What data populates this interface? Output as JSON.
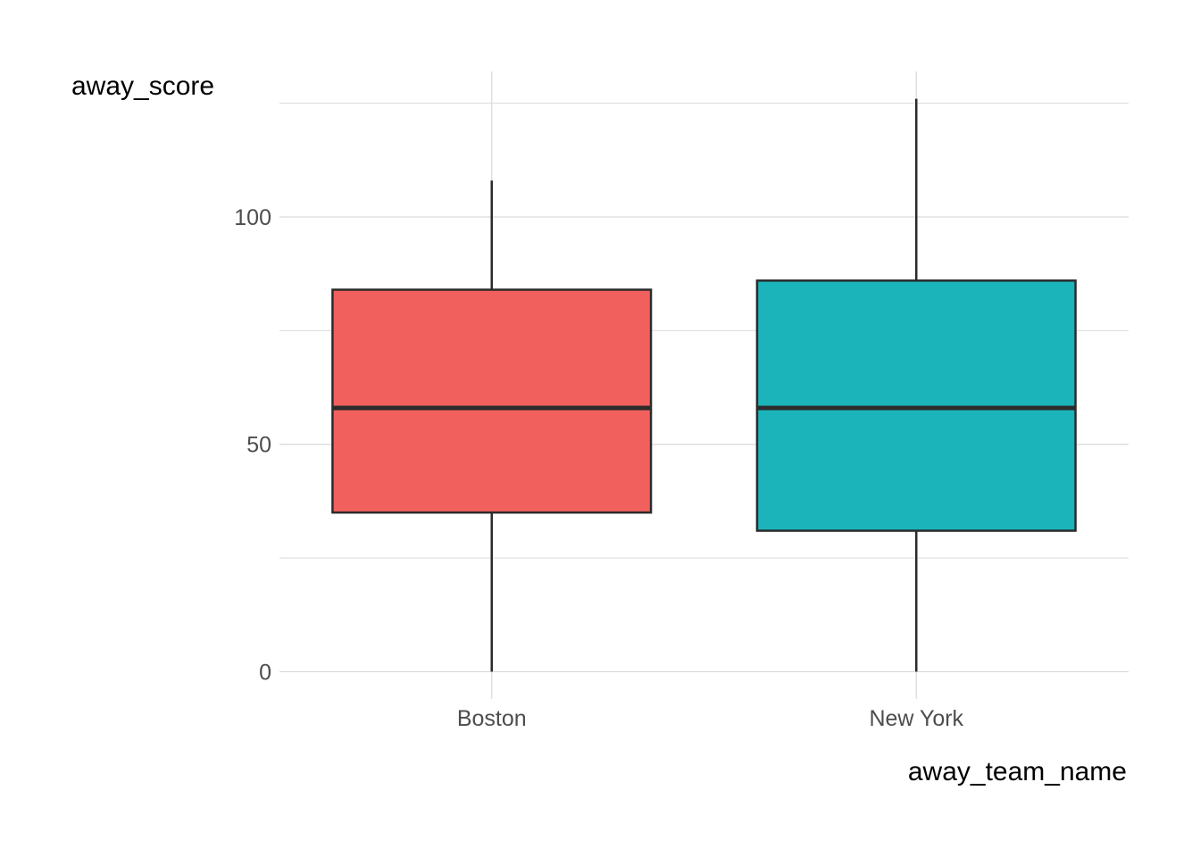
{
  "chart_data": {
    "type": "boxplot",
    "xlabel": "away_team_name",
    "ylabel": "away_score",
    "categories": [
      "Boston",
      "New York"
    ],
    "boxes": [
      {
        "category": "Boston",
        "min": 0,
        "q1": 35,
        "median": 58,
        "q3": 84,
        "max": 108,
        "fill": "#F2605E"
      },
      {
        "category": "New York",
        "min": 0,
        "q1": 31,
        "median": 58,
        "q3": 86,
        "max": 126,
        "fill": "#1BB4BA"
      }
    ],
    "ylim": [
      -6,
      132
    ],
    "y_ticks": [
      0,
      50,
      100
    ],
    "y_minor_ticks": [
      25,
      75,
      125
    ],
    "grid": true,
    "legend": "none",
    "colors": {
      "grid": "#d9d9d9",
      "box_outline": "#2b2b2b",
      "tick_text": "#4d4d4d"
    }
  }
}
